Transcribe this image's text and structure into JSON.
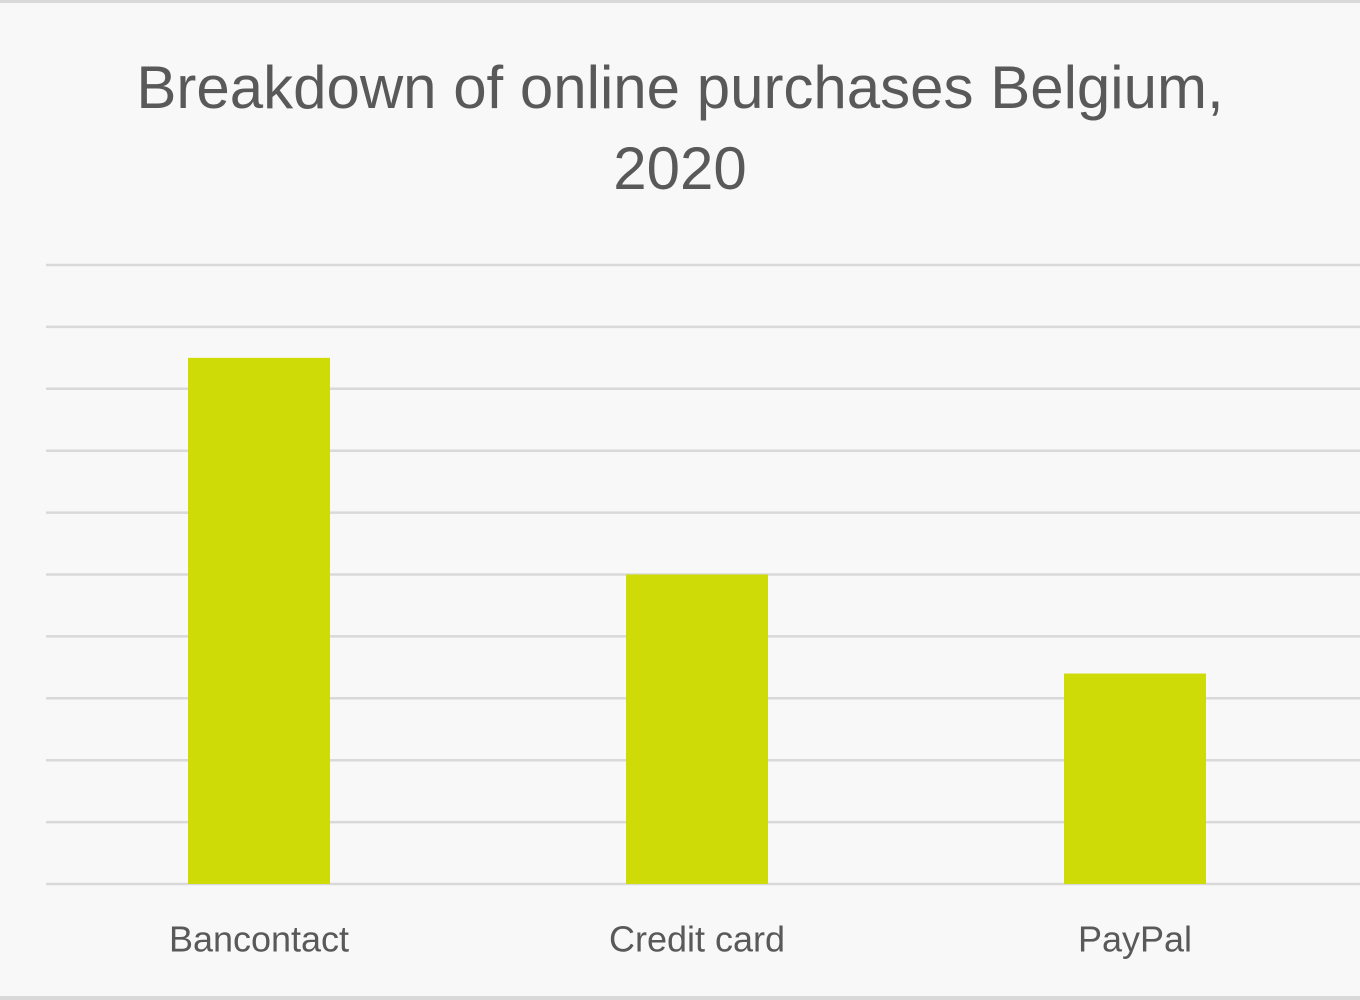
{
  "colors": {
    "bar": "#cedb07",
    "gridline": "#d9d9d9",
    "text": "#595959",
    "background": "#f8f8f8"
  },
  "chart_data": {
    "type": "bar",
    "title_lines": [
      "Breakdown of online purchases Belgium,",
      "2020"
    ],
    "categories": [
      "Bancontact",
      "Credit card",
      "PayPal"
    ],
    "values": [
      8.5,
      5.0,
      3.4
    ],
    "ylim": [
      0,
      10
    ],
    "gridlines": 10,
    "grid": true,
    "legend": "none",
    "xlabel": "",
    "ylabel": ""
  }
}
